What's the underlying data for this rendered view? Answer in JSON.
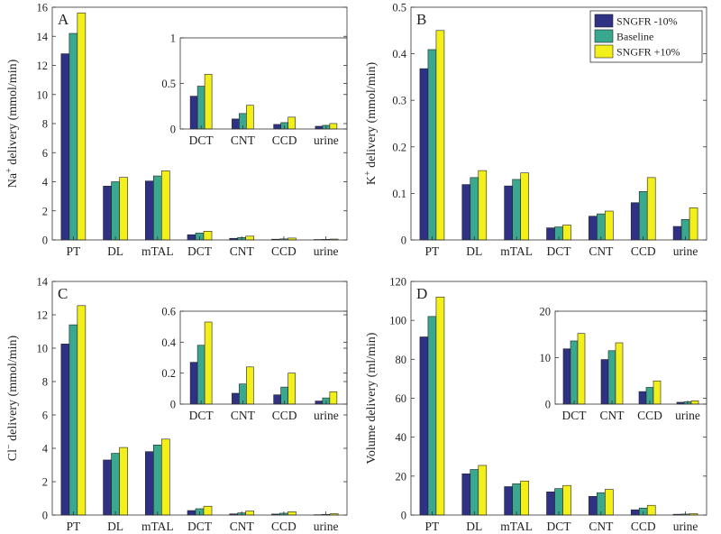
{
  "legend": {
    "entries": [
      "SNGFR -10%",
      "Baseline",
      "SNGFR +10%"
    ],
    "colors": [
      "#2e3184",
      "#3aa88f",
      "#f2ef1a"
    ]
  },
  "chart_data": [
    {
      "panel": "A",
      "type": "bar",
      "ylabel_parts": [
        "Na",
        "+",
        " delivery (mmol/min)"
      ],
      "ylim": [
        0,
        16
      ],
      "yticks": [
        0,
        2,
        4,
        6,
        8,
        10,
        12,
        14,
        16
      ],
      "categories": [
        "PT",
        "DL",
        "mTAL",
        "DCT",
        "CNT",
        "CCD",
        "urine"
      ],
      "series": [
        {
          "name": "SNGFR -10%",
          "values": [
            12.8,
            3.7,
            4.05,
            0.36,
            0.11,
            0.05,
            0.03
          ]
        },
        {
          "name": "Baseline",
          "values": [
            14.2,
            4.0,
            4.4,
            0.47,
            0.17,
            0.07,
            0.04
          ]
        },
        {
          "name": "SNGFR +10%",
          "values": [
            15.6,
            4.3,
            4.75,
            0.6,
            0.26,
            0.13,
            0.06
          ]
        }
      ],
      "inset": {
        "categories": [
          "DCT",
          "CNT",
          "CCD",
          "urine"
        ],
        "ylim": [
          0,
          1
        ],
        "yticks": [
          0,
          0.5,
          1
        ],
        "series": [
          {
            "name": "SNGFR -10%",
            "values": [
              0.36,
              0.11,
              0.05,
              0.03
            ]
          },
          {
            "name": "Baseline",
            "values": [
              0.47,
              0.17,
              0.07,
              0.04
            ]
          },
          {
            "name": "SNGFR +10%",
            "values": [
              0.6,
              0.26,
              0.13,
              0.06
            ]
          }
        ]
      }
    },
    {
      "panel": "B",
      "type": "bar",
      "ylabel_parts": [
        "K",
        "+",
        " delivery (mmol/min)"
      ],
      "ylim": [
        0,
        0.5
      ],
      "yticks": [
        0,
        0.1,
        0.2,
        0.3,
        0.4,
        0.5
      ],
      "categories": [
        "PT",
        "DL",
        "mTAL",
        "DCT",
        "CNT",
        "CCD",
        "urine"
      ],
      "series": [
        {
          "name": "SNGFR -10%",
          "values": [
            0.368,
            0.119,
            0.116,
            0.026,
            0.051,
            0.08,
            0.029
          ]
        },
        {
          "name": "Baseline",
          "values": [
            0.409,
            0.134,
            0.13,
            0.028,
            0.056,
            0.104,
            0.044
          ]
        },
        {
          "name": "SNGFR +10%",
          "values": [
            0.45,
            0.149,
            0.144,
            0.032,
            0.062,
            0.134,
            0.069
          ]
        }
      ],
      "legend_position": "top-right"
    },
    {
      "panel": "C",
      "type": "bar",
      "ylabel_parts": [
        "Cl",
        "−",
        " delivery (mmol/min)"
      ],
      "ylim": [
        0,
        14
      ],
      "yticks": [
        0,
        2,
        4,
        6,
        8,
        10,
        12,
        14
      ],
      "categories": [
        "PT",
        "DL",
        "mTAL",
        "DCT",
        "CNT",
        "CCD",
        "urine"
      ],
      "series": [
        {
          "name": "SNGFR -10%",
          "values": [
            10.25,
            3.3,
            3.8,
            0.27,
            0.07,
            0.06,
            0.02
          ]
        },
        {
          "name": "Baseline",
          "values": [
            11.4,
            3.7,
            4.2,
            0.38,
            0.13,
            0.11,
            0.04
          ]
        },
        {
          "name": "SNGFR +10%",
          "values": [
            12.55,
            4.05,
            4.55,
            0.53,
            0.24,
            0.2,
            0.08
          ]
        }
      ],
      "inset": {
        "categories": [
          "DCT",
          "CNT",
          "CCD",
          "urine"
        ],
        "ylim": [
          0,
          0.6
        ],
        "yticks": [
          0,
          0.2,
          0.4,
          0.6
        ],
        "series": [
          {
            "name": "SNGFR -10%",
            "values": [
              0.27,
              0.07,
              0.06,
              0.02
            ]
          },
          {
            "name": "Baseline",
            "values": [
              0.38,
              0.13,
              0.11,
              0.04
            ]
          },
          {
            "name": "SNGFR +10%",
            "values": [
              0.53,
              0.24,
              0.2,
              0.08
            ]
          }
        ]
      }
    },
    {
      "panel": "D",
      "type": "bar",
      "ylabel_parts": [
        "Volume delivery (ml/min)",
        "",
        ""
      ],
      "ylim": [
        0,
        120
      ],
      "yticks": [
        0,
        20,
        40,
        60,
        80,
        100,
        120
      ],
      "categories": [
        "PT",
        "DL",
        "mTAL",
        "DCT",
        "CNT",
        "CCD",
        "urine"
      ],
      "series": [
        {
          "name": "SNGFR -10%",
          "values": [
            91.5,
            21.2,
            14.6,
            11.9,
            9.6,
            2.7,
            0.4
          ]
        },
        {
          "name": "Baseline",
          "values": [
            102,
            23.4,
            16.1,
            13.6,
            11.5,
            3.6,
            0.5
          ]
        },
        {
          "name": "SNGFR +10%",
          "values": [
            112,
            25.5,
            17.5,
            15.2,
            13.2,
            5.0,
            0.7
          ]
        }
      ],
      "inset": {
        "categories": [
          "DCT",
          "CNT",
          "CCD",
          "urine"
        ],
        "ylim": [
          0,
          20
        ],
        "yticks": [
          0,
          10,
          20
        ],
        "series": [
          {
            "name": "SNGFR -10%",
            "values": [
              11.9,
              9.6,
              2.7,
              0.4
            ]
          },
          {
            "name": "Baseline",
            "values": [
              13.6,
              11.5,
              3.6,
              0.5
            ]
          },
          {
            "name": "SNGFR +10%",
            "values": [
              15.2,
              13.2,
              5.0,
              0.7
            ]
          }
        ]
      }
    }
  ]
}
